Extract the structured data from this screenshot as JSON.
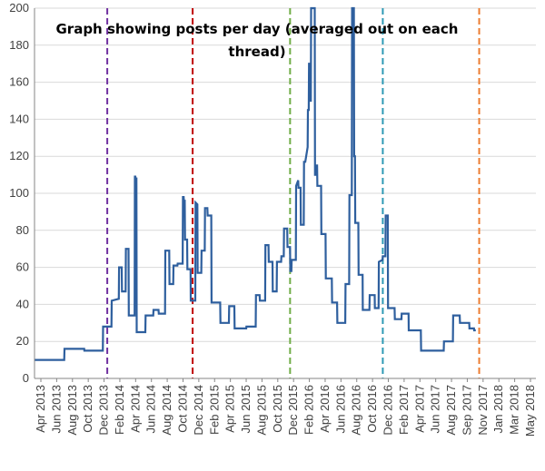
{
  "chart_data": {
    "type": "line",
    "title_lines": [
      "Graph showing posts per day (averaged out on each",
      "thread)"
    ],
    "xlabel": "",
    "ylabel": "",
    "ylim": [
      0,
      200
    ],
    "yticks": [
      0,
      20,
      40,
      60,
      80,
      100,
      120,
      140,
      160,
      180,
      200
    ],
    "grid": true,
    "x_tick_labels": [
      "Apr 2013",
      "Jun 2013",
      "Aug 2013",
      "Oct 2013",
      "Dec 2013",
      "Feb 2014",
      "Apr 2014",
      "Jun 2014",
      "Aug 2014",
      "Oct 2014",
      "Dec 2014",
      "Feb 2015",
      "Apr 2015",
      "Jun 2015",
      "Aug 2015",
      "Oct 2015",
      "Dec 2015",
      "Feb 2016",
      "Apr 2016",
      "Jun 2016",
      "Aug 2016",
      "Oct 2016",
      "Dec 2016",
      "Feb 2017",
      "Apr 2017",
      "Jun 2017",
      "Aug 2017",
      "Sep 2017",
      "Nov 2017",
      "Jan 2018",
      "Mar 2018",
      "May 2018"
    ],
    "x_range": [
      "2013-03-10",
      "2018-06-01"
    ],
    "series": [
      {
        "color": "#2e5f9e",
        "points": [
          [
            "2013-03-10",
            10
          ],
          [
            "2013-07-01",
            10
          ],
          [
            "2013-07-02",
            16
          ],
          [
            "2013-09-15",
            16
          ],
          [
            "2013-09-16",
            15
          ],
          [
            "2013-11-25",
            15
          ],
          [
            "2013-11-26",
            28
          ],
          [
            "2013-12-28",
            28
          ],
          [
            "2013-12-29",
            42
          ],
          [
            "2014-01-25",
            43
          ],
          [
            "2014-01-26",
            60
          ],
          [
            "2014-02-05",
            60
          ],
          [
            "2014-02-06",
            47
          ],
          [
            "2014-02-20",
            47
          ],
          [
            "2014-02-21",
            70
          ],
          [
            "2014-03-03",
            70
          ],
          [
            "2014-03-04",
            34
          ],
          [
            "2014-03-26",
            34
          ],
          [
            "2014-03-27",
            109
          ],
          [
            "2014-03-29",
            109
          ],
          [
            "2014-03-30",
            108
          ],
          [
            "2014-04-02",
            108
          ],
          [
            "2014-04-03",
            25
          ],
          [
            "2014-05-06",
            25
          ],
          [
            "2014-05-07",
            34
          ],
          [
            "2014-06-05",
            34
          ],
          [
            "2014-06-06",
            37
          ],
          [
            "2014-06-25",
            37
          ],
          [
            "2014-06-26",
            35
          ],
          [
            "2014-07-20",
            35
          ],
          [
            "2014-07-21",
            69
          ],
          [
            "2014-08-05",
            69
          ],
          [
            "2014-08-06",
            51
          ],
          [
            "2014-08-20",
            51
          ],
          [
            "2014-08-21",
            61
          ],
          [
            "2014-09-05",
            61
          ],
          [
            "2014-09-06",
            62
          ],
          [
            "2014-09-25",
            62
          ],
          [
            "2014-09-26",
            98
          ],
          [
            "2014-09-29",
            98
          ],
          [
            "2014-09-30",
            96
          ],
          [
            "2014-10-03",
            96
          ],
          [
            "2014-10-04",
            75
          ],
          [
            "2014-10-12",
            75
          ],
          [
            "2014-10-13",
            59
          ],
          [
            "2014-10-25",
            59
          ],
          [
            "2014-10-26",
            42
          ],
          [
            "2014-11-12",
            42
          ],
          [
            "2014-11-13",
            95
          ],
          [
            "2014-11-20",
            94
          ],
          [
            "2014-11-21",
            57
          ],
          [
            "2014-12-05",
            57
          ],
          [
            "2014-12-06",
            69
          ],
          [
            "2014-12-18",
            69
          ],
          [
            "2014-12-19",
            92
          ],
          [
            "2014-12-28",
            92
          ],
          [
            "2014-12-29",
            88
          ],
          [
            "2015-01-12",
            88
          ],
          [
            "2015-01-13",
            41
          ],
          [
            "2015-02-15",
            41
          ],
          [
            "2015-02-16",
            30
          ],
          [
            "2015-03-20",
            30
          ],
          [
            "2015-03-21",
            39
          ],
          [
            "2015-04-10",
            39
          ],
          [
            "2015-04-11",
            27
          ],
          [
            "2015-05-25",
            27
          ],
          [
            "2015-05-26",
            28
          ],
          [
            "2015-06-30",
            28
          ],
          [
            "2015-07-01",
            45
          ],
          [
            "2015-07-15",
            45
          ],
          [
            "2015-07-16",
            42
          ],
          [
            "2015-08-05",
            42
          ],
          [
            "2015-08-06",
            72
          ],
          [
            "2015-08-18",
            72
          ],
          [
            "2015-08-19",
            63
          ],
          [
            "2015-09-02",
            63
          ],
          [
            "2015-09-03",
            47
          ],
          [
            "2015-09-18",
            47
          ],
          [
            "2015-09-19",
            63
          ],
          [
            "2015-10-05",
            63
          ],
          [
            "2015-10-06",
            66
          ],
          [
            "2015-10-15",
            66
          ],
          [
            "2015-10-16",
            81
          ],
          [
            "2015-10-28",
            81
          ],
          [
            "2015-10-29",
            71
          ],
          [
            "2015-11-08",
            71
          ],
          [
            "2015-11-09",
            58
          ],
          [
            "2015-11-13",
            58
          ],
          [
            "2015-11-14",
            64
          ],
          [
            "2015-11-30",
            64
          ],
          [
            "2015-12-01",
            104
          ],
          [
            "2015-12-09",
            107
          ],
          [
            "2015-12-10",
            103
          ],
          [
            "2015-12-18",
            103
          ],
          [
            "2015-12-19",
            83
          ],
          [
            "2015-12-30",
            83
          ],
          [
            "2015-12-31",
            117
          ],
          [
            "2016-01-05",
            117
          ],
          [
            "2016-01-06",
            118
          ],
          [
            "2016-01-14",
            125
          ],
          [
            "2016-01-15",
            145
          ],
          [
            "2016-01-18",
            145
          ],
          [
            "2016-01-19",
            170
          ],
          [
            "2016-01-22",
            170
          ],
          [
            "2016-01-23",
            150
          ],
          [
            "2016-01-26",
            150
          ],
          [
            "2016-01-27",
            200
          ],
          [
            "2016-02-10",
            200
          ],
          [
            "2016-02-11",
            110
          ],
          [
            "2016-02-15",
            110
          ],
          [
            "2016-02-16",
            115
          ],
          [
            "2016-02-19",
            115
          ],
          [
            "2016-02-20",
            104
          ],
          [
            "2016-03-05",
            104
          ],
          [
            "2016-03-06",
            78
          ],
          [
            "2016-03-22",
            78
          ],
          [
            "2016-03-23",
            54
          ],
          [
            "2016-04-15",
            54
          ],
          [
            "2016-04-16",
            41
          ],
          [
            "2016-05-05",
            41
          ],
          [
            "2016-05-06",
            30
          ],
          [
            "2016-06-05",
            30
          ],
          [
            "2016-06-06",
            51
          ],
          [
            "2016-06-20",
            51
          ],
          [
            "2016-06-21",
            99
          ],
          [
            "2016-06-30",
            99
          ],
          [
            "2016-07-01",
            200
          ],
          [
            "2016-07-08",
            200
          ],
          [
            "2016-07-09",
            120
          ],
          [
            "2016-07-12",
            120
          ],
          [
            "2016-07-13",
            84
          ],
          [
            "2016-07-25",
            84
          ],
          [
            "2016-07-26",
            56
          ],
          [
            "2016-08-10",
            56
          ],
          [
            "2016-08-11",
            37
          ],
          [
            "2016-09-05",
            37
          ],
          [
            "2016-09-06",
            45
          ],
          [
            "2016-09-25",
            45
          ],
          [
            "2016-09-26",
            38
          ],
          [
            "2016-10-10",
            38
          ],
          [
            "2016-10-11",
            63
          ],
          [
            "2016-10-25",
            64
          ],
          [
            "2016-10-26",
            66
          ],
          [
            "2016-11-05",
            66
          ],
          [
            "2016-11-06",
            88
          ],
          [
            "2016-11-14",
            88
          ],
          [
            "2016-11-15",
            38
          ],
          [
            "2016-12-10",
            38
          ],
          [
            "2016-12-11",
            32
          ],
          [
            "2017-01-05",
            32
          ],
          [
            "2017-01-06",
            35
          ],
          [
            "2017-02-01",
            35
          ],
          [
            "2017-02-02",
            26
          ],
          [
            "2017-03-20",
            26
          ],
          [
            "2017-03-21",
            15
          ],
          [
            "2017-06-15",
            15
          ],
          [
            "2017-06-16",
            20
          ],
          [
            "2017-07-20",
            20
          ],
          [
            "2017-07-21",
            34
          ],
          [
            "2017-08-15",
            34
          ],
          [
            "2017-08-16",
            30
          ],
          [
            "2017-09-20",
            30
          ],
          [
            "2017-09-21",
            27
          ],
          [
            "2017-10-08",
            27
          ],
          [
            "2017-10-09",
            26
          ],
          [
            "2017-10-15",
            26
          ]
        ]
      }
    ],
    "reference_lines": [
      {
        "x": "2013-12-12",
        "color": "#7030a0"
      },
      {
        "x": "2014-11-02",
        "color": "#c00000"
      },
      {
        "x": "2015-11-08",
        "color": "#70ad47"
      },
      {
        "x": "2016-10-26",
        "color": "#2e9ab5"
      },
      {
        "x": "2017-10-28",
        "color": "#ed7d31"
      }
    ]
  }
}
